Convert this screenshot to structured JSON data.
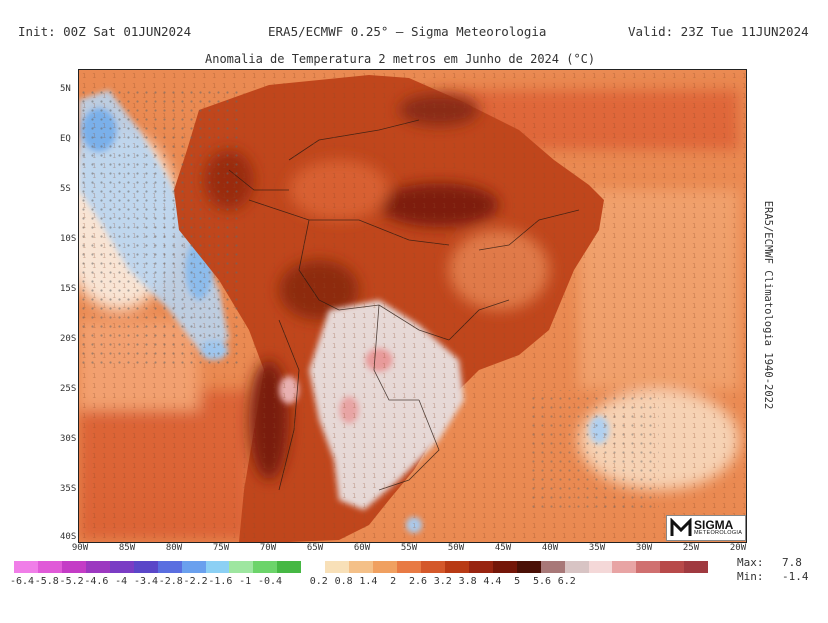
{
  "header": {
    "init": "Init: 00Z Sat 01JUN2024",
    "source": "ERA5/ECMWF 0.25° — Sigma Meteorologia",
    "valid": "Valid: 23Z Tue 11JUN2024"
  },
  "map": {
    "title": "Anomalia de Temperatura 2 metros em Junho de 2024 (°C)",
    "lat_labels": [
      "5N",
      "EQ",
      "5S",
      "10S",
      "15S",
      "20S",
      "25S",
      "30S",
      "35S",
      "40S"
    ],
    "lon_labels": [
      "90W",
      "85W",
      "80W",
      "75W",
      "70W",
      "65W",
      "60W",
      "55W",
      "50W",
      "45W",
      "40W",
      "35W",
      "30W",
      "25W",
      "20W"
    ],
    "side_label": "ERA5/ECMWF Climatologia 1940-2022",
    "logo_name": "SIGMA",
    "logo_sub": "METEOROLOGIA",
    "colors": {
      "ocean_warm": "#e8804a",
      "land_hot": "#b83a14",
      "extreme": "#6e1a08",
      "cool_blue": "#a8c8ee",
      "neutral": "#f6ead8",
      "pale_core": "#e9dcd9"
    }
  },
  "colorbar": {
    "labels": [
      "-6.4",
      "-5.8",
      "-5.2",
      "-4.6",
      "-4",
      "-3.4",
      "-2.8",
      "-2.2",
      "-1.6",
      "-1",
      "-0.4",
      "0.2",
      "0.8",
      "1.4",
      "2",
      "2.6",
      "3.2",
      "3.8",
      "4.4",
      "5",
      "5.6",
      "6.2"
    ],
    "colors": [
      "#f07ee8",
      "#e05ad8",
      "#c43cc6",
      "#9c38c0",
      "#7a3cc4",
      "#5a46c8",
      "#5a6ee0",
      "#6aa0ee",
      "#8cd0f4",
      "#9ee6a0",
      "#6cd46a",
      "#46b844",
      "#ffffff",
      "#f8e0b8",
      "#f4c088",
      "#f0a060",
      "#e87a44",
      "#d4582a",
      "#b83a14",
      "#982410",
      "#741608",
      "#4a1006",
      "#a87878",
      "#d8c4c4",
      "#f4d8d8",
      "#e8a4a4",
      "#d07070",
      "#b84a4a",
      "#a03a40"
    ]
  },
  "stats": {
    "max_label": "Max:",
    "max_value": "7.8",
    "min_label": "Min:",
    "min_value": "-1.4"
  }
}
